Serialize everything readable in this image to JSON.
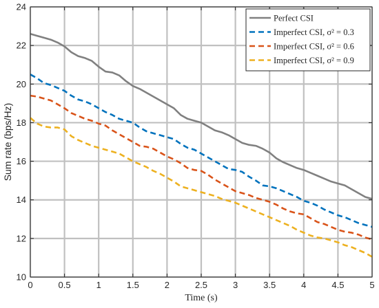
{
  "chart_data": {
    "type": "line",
    "xlabel": "Time (s)",
    "ylabel": "Sum rate (bps/Hz)",
    "xlim": [
      0,
      5
    ],
    "ylim": [
      10,
      24
    ],
    "xticks": [
      "0",
      "0.5",
      "1",
      "1.5",
      "2",
      "2.5",
      "3",
      "3.5",
      "4",
      "4.5",
      "5"
    ],
    "yticks": [
      "10",
      "12",
      "14",
      "16",
      "18",
      "20",
      "22",
      "24"
    ],
    "grid": true,
    "legend_position": "top-right",
    "x": [
      0,
      0.1,
      0.2,
      0.3,
      0.4,
      0.5,
      0.6,
      0.7,
      0.8,
      0.9,
      1.0,
      1.1,
      1.2,
      1.3,
      1.4,
      1.5,
      1.6,
      1.7,
      1.8,
      1.9,
      2.0,
      2.1,
      2.2,
      2.3,
      2.4,
      2.5,
      2.6,
      2.7,
      2.8,
      2.9,
      3.0,
      3.1,
      3.2,
      3.3,
      3.4,
      3.5,
      3.6,
      3.7,
      3.8,
      3.9,
      4.0,
      4.1,
      4.2,
      4.3,
      4.4,
      4.5,
      4.6,
      4.7,
      4.8,
      4.9,
      5.0
    ],
    "series": [
      {
        "name": "Perfect CSI",
        "color": "#808080",
        "dash": "solid",
        "values": [
          22.6,
          22.5,
          22.4,
          22.3,
          22.15,
          21.95,
          21.65,
          21.45,
          21.35,
          21.2,
          20.9,
          20.65,
          20.6,
          20.45,
          20.15,
          19.9,
          19.75,
          19.55,
          19.35,
          19.15,
          18.95,
          18.75,
          18.4,
          18.2,
          18.1,
          18.0,
          17.8,
          17.6,
          17.5,
          17.35,
          17.15,
          16.95,
          16.85,
          16.8,
          16.65,
          16.45,
          16.15,
          15.95,
          15.8,
          15.65,
          15.55,
          15.4,
          15.25,
          15.1,
          14.95,
          14.85,
          14.75,
          14.55,
          14.35,
          14.15,
          14.05
        ]
      },
      {
        "name": "Imperfect CSI, σ² = 0.3",
        "color": "#0072BD",
        "dash": "dashed",
        "values": [
          20.5,
          20.3,
          20.05,
          19.95,
          19.8,
          19.65,
          19.4,
          19.2,
          19.1,
          18.95,
          18.75,
          18.55,
          18.4,
          18.2,
          18.1,
          18.0,
          17.75,
          17.55,
          17.45,
          17.35,
          17.25,
          17.15,
          16.9,
          16.7,
          16.6,
          16.4,
          16.2,
          16.0,
          15.8,
          15.6,
          15.55,
          15.45,
          15.2,
          15.0,
          14.75,
          14.7,
          14.6,
          14.45,
          14.3,
          14.15,
          13.95,
          13.85,
          13.7,
          13.5,
          13.35,
          13.2,
          13.1,
          12.95,
          12.8,
          12.7,
          12.6
        ]
      },
      {
        "name": "Imperfect CSI, σ² = 0.6",
        "color": "#D95319",
        "dash": "dashed",
        "values": [
          19.4,
          19.35,
          19.25,
          19.15,
          18.95,
          18.75,
          18.5,
          18.35,
          18.2,
          18.1,
          17.95,
          17.85,
          17.6,
          17.4,
          17.2,
          17.0,
          16.8,
          16.75,
          16.65,
          16.45,
          16.25,
          16.1,
          15.9,
          15.65,
          15.55,
          15.5,
          15.3,
          15.05,
          14.85,
          14.65,
          14.45,
          14.35,
          14.25,
          14.1,
          14.0,
          13.9,
          13.75,
          13.55,
          13.4,
          13.3,
          13.25,
          13.05,
          12.85,
          12.75,
          12.6,
          12.45,
          12.35,
          12.3,
          12.2,
          12.05,
          11.95
        ]
      },
      {
        "name": "Imperfect CSI, σ² = 0.9",
        "color": "#EDB120",
        "dash": "dashed",
        "values": [
          18.25,
          17.95,
          17.8,
          17.75,
          17.75,
          17.65,
          17.3,
          17.1,
          16.95,
          16.8,
          16.7,
          16.6,
          16.5,
          16.4,
          16.2,
          16.0,
          15.85,
          15.7,
          15.5,
          15.35,
          15.15,
          14.95,
          14.7,
          14.6,
          14.5,
          14.4,
          14.3,
          14.2,
          14.05,
          13.95,
          13.85,
          13.7,
          13.55,
          13.4,
          13.25,
          13.1,
          12.95,
          12.8,
          12.65,
          12.45,
          12.3,
          12.15,
          12.05,
          12.0,
          11.9,
          11.8,
          11.65,
          11.55,
          11.4,
          11.25,
          11.05
        ]
      }
    ]
  }
}
